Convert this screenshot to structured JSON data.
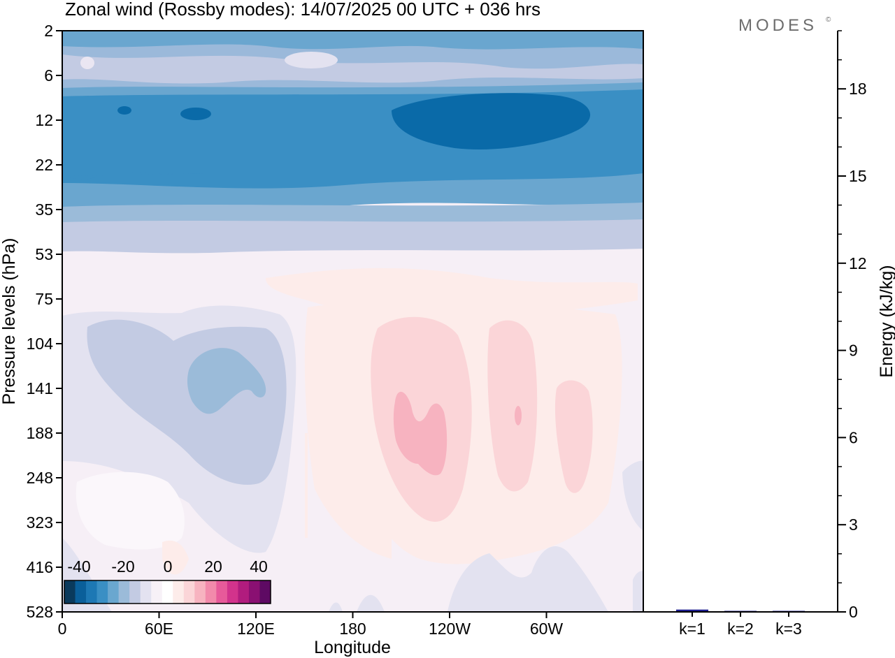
{
  "title": "Zonal wind (Rossby modes):  14/07/2025  00 UTC  + 036 hrs",
  "brand": "MODES",
  "brand_mark": "©",
  "chart_data": [
    {
      "type": "heatmap",
      "xlabel": "Longitude",
      "ylabel": "Pressure levels (hPa)",
      "x_ticks": [
        "0",
        "60E",
        "120E",
        "180",
        "120W",
        "60W"
      ],
      "y_ticks": [
        "2",
        "6",
        "12",
        "22",
        "35",
        "53",
        "75",
        "104",
        "141",
        "188",
        "248",
        "323",
        "416",
        "528"
      ],
      "colorbar": {
        "labels": [
          "-40",
          "-20",
          "0",
          "20",
          "40"
        ],
        "colors": [
          "#0a3a5c",
          "#0a5f9a",
          "#1d78b4",
          "#3a8fc4",
          "#6aa7cf",
          "#9bbbd9",
          "#c3cbe3",
          "#e3e2f0",
          "#f7f1f7",
          "#ffffff",
          "#fdecea",
          "#fbd5d8",
          "#f7b3c0",
          "#f28aab",
          "#e75a9a",
          "#d2338c",
          "#b11c7e",
          "#8a1072",
          "#5e0a63"
        ]
      },
      "regions": [
        {
          "band": "2-6 hPa",
          "value": "about -5 to -15"
        },
        {
          "band": "6-35 hPa",
          "value": "about -20 to -35"
        },
        {
          "band": "53-528 hPa",
          "value": "about -10 to +10"
        }
      ]
    },
    {
      "type": "bar",
      "ylabel": "Energy (kJ/kg)",
      "ylim": [
        0,
        20
      ],
      "y_ticks": [
        "0",
        "3",
        "6",
        "9",
        "12",
        "15",
        "18"
      ],
      "categories": [
        "k=1",
        "k=2",
        "k=3"
      ],
      "values": [
        0.08,
        0.03,
        0.02
      ],
      "bar_color": "#1b1b8f"
    }
  ]
}
